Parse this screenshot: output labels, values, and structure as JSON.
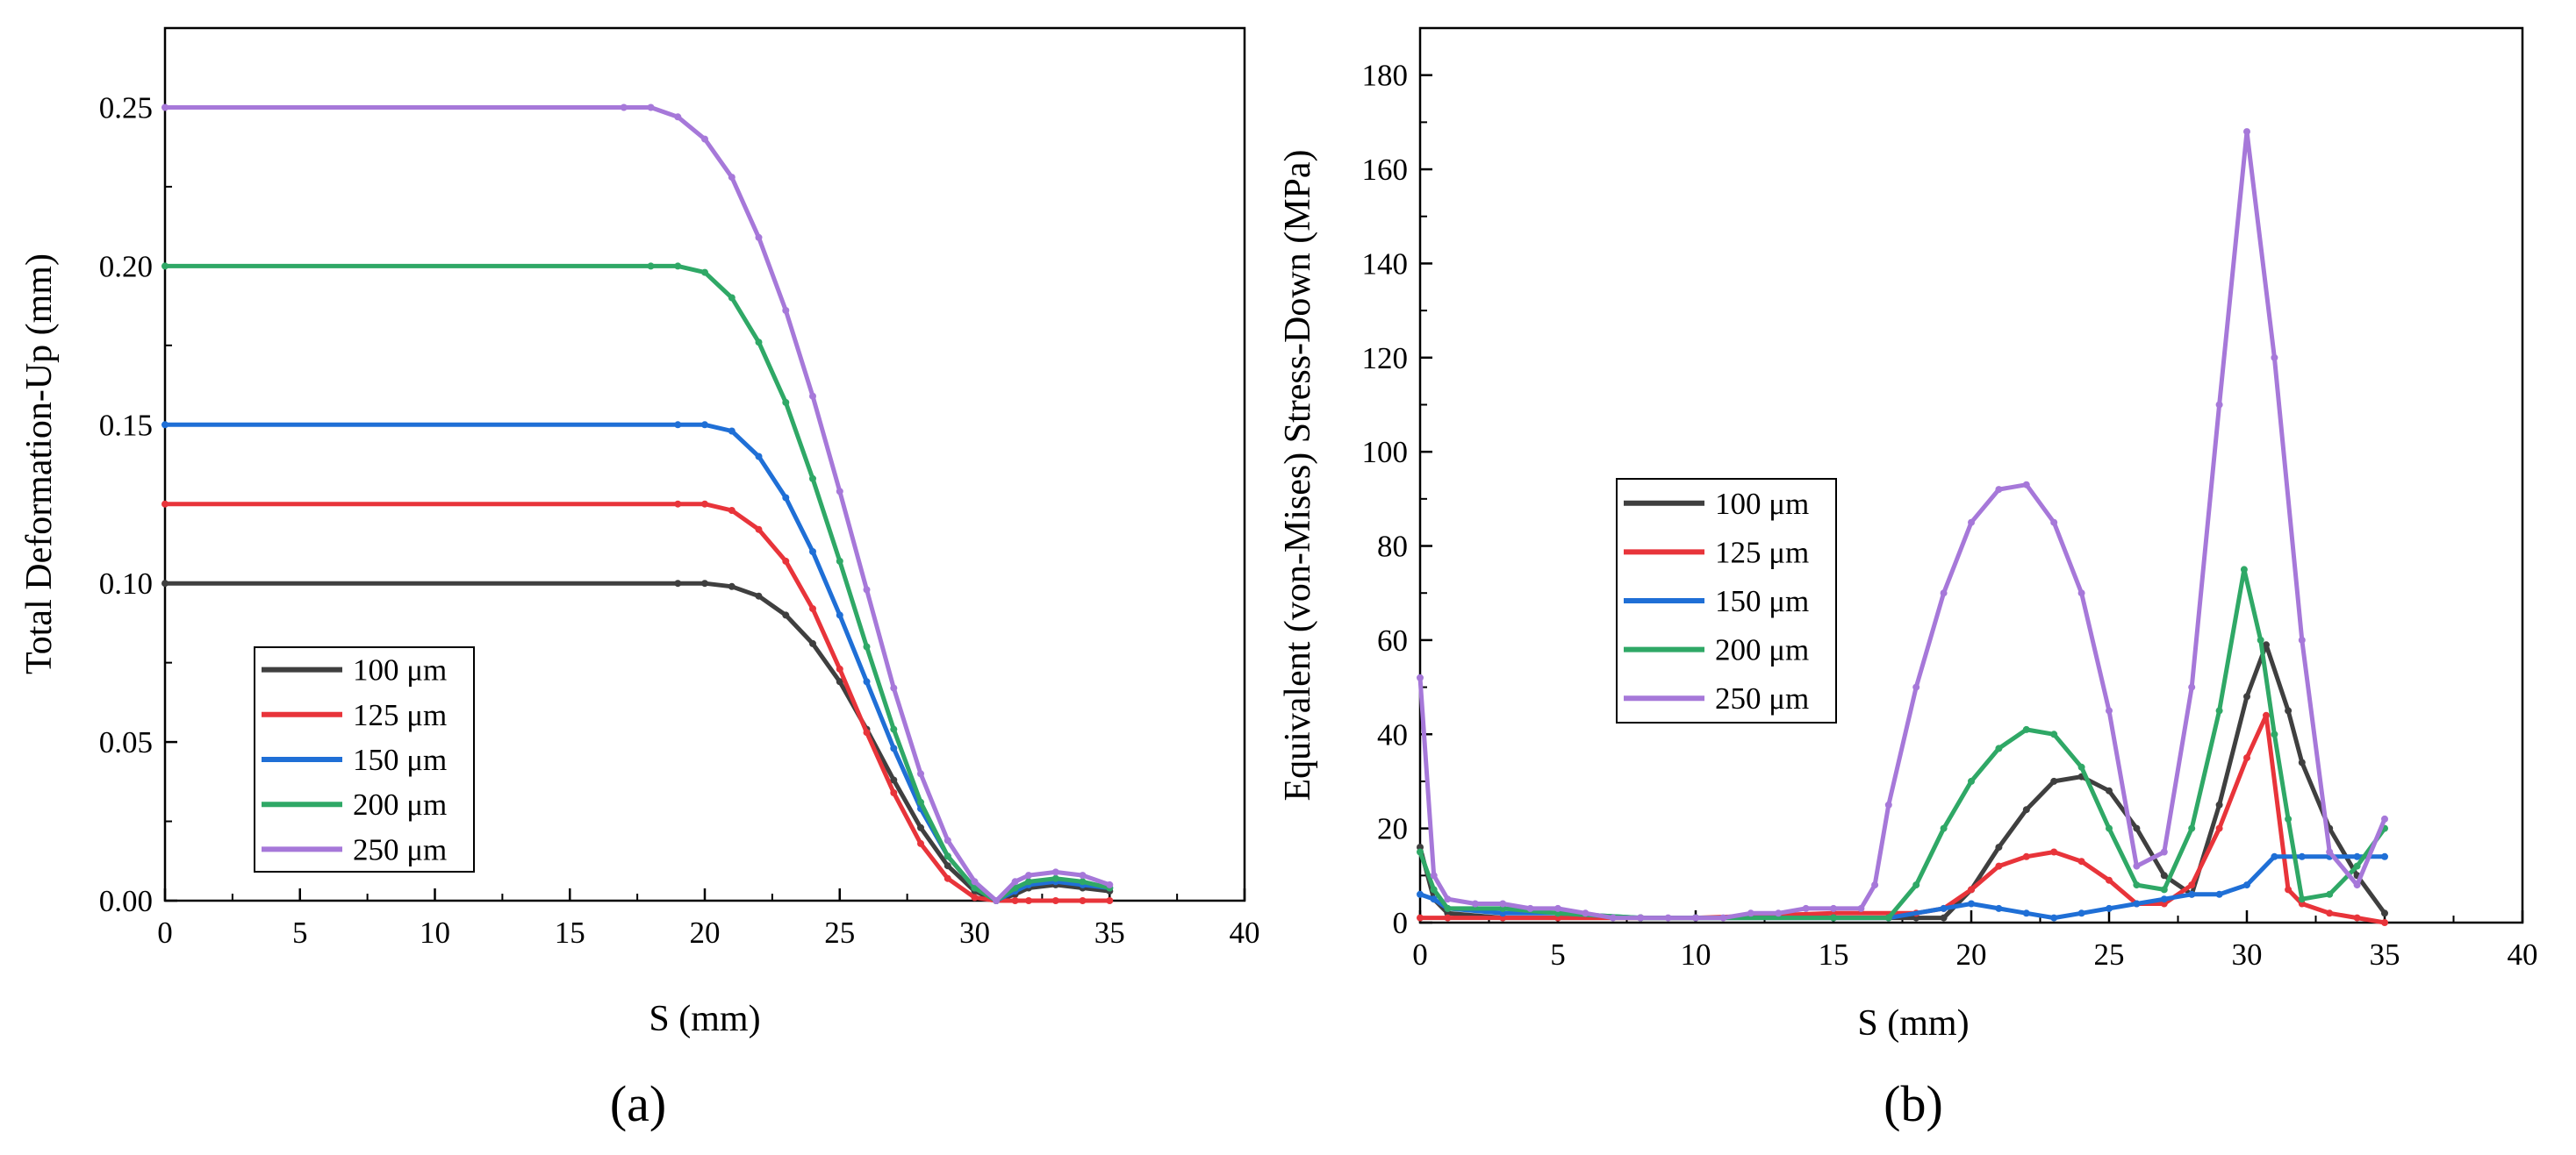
{
  "figure": {
    "panels": [
      "(a)",
      "(b)"
    ]
  },
  "colors": {
    "100": "#3f3f3f",
    "125": "#e8343a",
    "150": "#1f6fd6",
    "200": "#2fa866",
    "250": "#a678d9"
  },
  "chart_data": [
    {
      "type": "line",
      "panel_label": "(a)",
      "xlabel": "S (mm)",
      "ylabel": "Total Deformation-Up (mm)",
      "xlim": [
        0,
        40
      ],
      "ylim": [
        0,
        0.275
      ],
      "xticks": [
        0,
        5,
        10,
        15,
        20,
        25,
        30,
        35,
        40
      ],
      "yticks": [
        0.0,
        0.05,
        0.1,
        0.15,
        0.2,
        0.25
      ],
      "ytick_labels": [
        "0.00",
        "0.05",
        "0.10",
        "0.15",
        "0.20",
        "0.25"
      ],
      "legend_position": "lower-left",
      "series": [
        {
          "name": "100 μm",
          "color_key": "100",
          "x": [
            0,
            19,
            20,
            21,
            22,
            23,
            24,
            25,
            26,
            27,
            28,
            29,
            30,
            30.8,
            31.5,
            32,
            33,
            34,
            35
          ],
          "y": [
            0.1,
            0.1,
            0.1,
            0.099,
            0.096,
            0.09,
            0.081,
            0.069,
            0.054,
            0.038,
            0.023,
            0.011,
            0.003,
            0.0,
            0.002,
            0.004,
            0.005,
            0.004,
            0.003
          ]
        },
        {
          "name": "125 μm",
          "color_key": "125",
          "x": [
            0,
            19,
            20,
            21,
            22,
            23,
            24,
            25,
            26,
            27,
            28,
            29,
            30,
            30.8,
            31.5,
            32,
            33,
            34,
            35
          ],
          "y": [
            0.125,
            0.125,
            0.125,
            0.123,
            0.117,
            0.107,
            0.092,
            0.073,
            0.053,
            0.034,
            0.018,
            0.007,
            0.001,
            0.0,
            0.0,
            0.0,
            0.0,
            0.0,
            0.0
          ]
        },
        {
          "name": "150 μm",
          "color_key": "150",
          "x": [
            0,
            19,
            20,
            21,
            22,
            23,
            24,
            25,
            26,
            27,
            28,
            29,
            30,
            30.8,
            31.5,
            32,
            33,
            34,
            35
          ],
          "y": [
            0.15,
            0.15,
            0.15,
            0.148,
            0.14,
            0.127,
            0.11,
            0.09,
            0.069,
            0.048,
            0.029,
            0.014,
            0.004,
            0.0,
            0.003,
            0.005,
            0.006,
            0.005,
            0.004
          ]
        },
        {
          "name": "200 μm",
          "color_key": "200",
          "x": [
            0,
            18,
            19,
            20,
            21,
            22,
            23,
            24,
            25,
            26,
            27,
            28,
            29,
            30,
            30.8,
            31.5,
            32,
            33,
            34,
            35
          ],
          "y": [
            0.2,
            0.2,
            0.2,
            0.198,
            0.19,
            0.176,
            0.157,
            0.133,
            0.107,
            0.08,
            0.054,
            0.031,
            0.014,
            0.004,
            0.0,
            0.004,
            0.006,
            0.007,
            0.006,
            0.004
          ]
        },
        {
          "name": "250 μm",
          "color_key": "250",
          "x": [
            0,
            17,
            18,
            19,
            20,
            21,
            22,
            23,
            24,
            25,
            26,
            27,
            28,
            29,
            30,
            30.8,
            31.5,
            32,
            33,
            34,
            35
          ],
          "y": [
            0.25,
            0.25,
            0.25,
            0.247,
            0.24,
            0.228,
            0.209,
            0.186,
            0.159,
            0.129,
            0.098,
            0.067,
            0.04,
            0.019,
            0.006,
            0.0,
            0.006,
            0.008,
            0.009,
            0.008,
            0.005
          ]
        }
      ]
    },
    {
      "type": "line",
      "panel_label": "(b)",
      "xlabel": "S (mm)",
      "ylabel": "Equivalent (von-Mises) Stress-Down (MPa)",
      "xlim": [
        0,
        40
      ],
      "ylim": [
        0,
        190
      ],
      "xticks": [
        0,
        5,
        10,
        15,
        20,
        25,
        30,
        35,
        40
      ],
      "yticks": [
        0,
        20,
        40,
        60,
        80,
        100,
        120,
        140,
        160,
        180
      ],
      "ytick_labels": [
        "0",
        "20",
        "40",
        "60",
        "80",
        "100",
        "120",
        "140",
        "160",
        "180"
      ],
      "legend_position": "center-left",
      "series": [
        {
          "name": "100 μm",
          "color_key": "100",
          "x": [
            0,
            0.5,
            1,
            3,
            5,
            8,
            10,
            15,
            18,
            19,
            20,
            21,
            22,
            23,
            24,
            25,
            26,
            27,
            28,
            29,
            30,
            30.7,
            31.5,
            32,
            33,
            34,
            35
          ],
          "y": [
            16,
            5,
            2,
            1,
            1,
            1,
            1,
            1,
            1,
            1,
            7,
            16,
            24,
            30,
            31,
            28,
            20,
            10,
            6,
            25,
            48,
            59,
            45,
            34,
            20,
            10,
            2
          ]
        },
        {
          "name": "125 μm",
          "color_key": "125",
          "x": [
            0,
            1,
            3,
            5,
            8,
            10,
            15,
            18,
            19,
            20,
            21,
            22,
            23,
            24,
            25,
            26,
            27,
            28,
            29,
            30,
            30.7,
            31.5,
            32,
            33,
            34,
            35
          ],
          "y": [
            1,
            1,
            1,
            1,
            1,
            1,
            2,
            2,
            3,
            7,
            12,
            14,
            15,
            13,
            9,
            4,
            4,
            8,
            20,
            35,
            44,
            7,
            4,
            2,
            1,
            0
          ]
        },
        {
          "name": "150 μm",
          "color_key": "150",
          "x": [
            0,
            0.5,
            1,
            3,
            5,
            8,
            10,
            15,
            17,
            19,
            20,
            21,
            22,
            23,
            24,
            25,
            26,
            27,
            28,
            29,
            30,
            31,
            32,
            33,
            34,
            35
          ],
          "y": [
            6,
            5,
            3,
            2,
            2,
            1,
            1,
            1,
            1,
            3,
            4,
            3,
            2,
            1,
            2,
            3,
            4,
            5,
            6,
            6,
            8,
            14,
            14,
            14,
            14,
            14
          ]
        },
        {
          "name": "200 μm",
          "color_key": "200",
          "x": [
            0,
            0.5,
            1,
            3,
            5,
            8,
            10,
            15,
            17,
            18,
            19,
            20,
            21,
            22,
            23,
            24,
            25,
            26,
            27,
            28,
            29,
            29.9,
            30.5,
            31,
            31.5,
            32,
            33,
            34,
            35
          ],
          "y": [
            15,
            7,
            3,
            3,
            2,
            1,
            1,
            1,
            1,
            8,
            20,
            30,
            37,
            41,
            40,
            33,
            20,
            8,
            7,
            20,
            45,
            75,
            60,
            40,
            22,
            5,
            6,
            12,
            20
          ]
        },
        {
          "name": "250 μm",
          "color_key": "250",
          "x": [
            0,
            0.5,
            1,
            2,
            3,
            4,
            5,
            6,
            7,
            8,
            9,
            10,
            11,
            12,
            13,
            14,
            15,
            16,
            16.5,
            17,
            18,
            19,
            20,
            21,
            22,
            23,
            24,
            25,
            26,
            27,
            28,
            29,
            30,
            31,
            32,
            33,
            34,
            35
          ],
          "y": [
            52,
            10,
            5,
            4,
            4,
            3,
            3,
            2,
            1,
            1,
            1,
            1,
            1,
            2,
            2,
            3,
            3,
            3,
            8,
            25,
            50,
            70,
            85,
            92,
            93,
            85,
            70,
            45,
            12,
            15,
            50,
            110,
            168,
            120,
            60,
            15,
            8,
            22
          ]
        }
      ]
    }
  ]
}
